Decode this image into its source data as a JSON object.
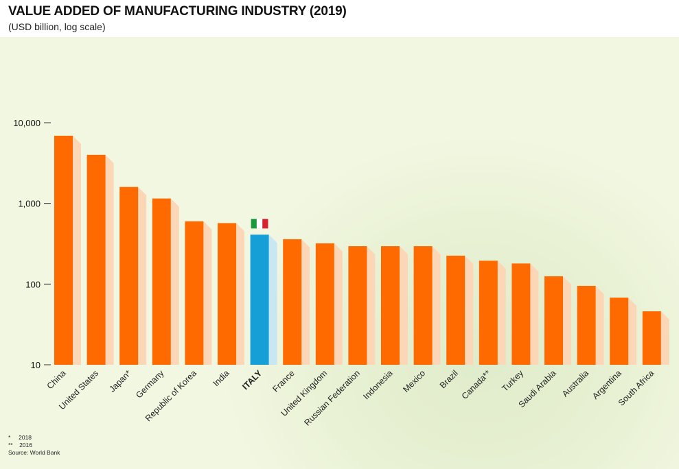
{
  "header": {
    "title": "VALUE ADDED OF MANUFACTURING INDUSTRY (2019)",
    "subtitle": "(USD billion, log scale)"
  },
  "colors": {
    "bar": "#ff6a00",
    "bar_shadow": "#fcd7b7",
    "highlight": "#169fd6",
    "highlight_shadow": "#c9e6f3",
    "flag_green": "#1a9a3d",
    "flag_white": "#ffffff",
    "flag_red": "#d7232f"
  },
  "footnotes": {
    "note1_mark": "*",
    "note1_text": "2018",
    "note2_mark": "**",
    "note2_text": "2016",
    "source": "Source: World Bank"
  },
  "chart_data": {
    "type": "bar",
    "title": "VALUE ADDED OF MANUFACTURING INDUSTRY (2019)",
    "subtitle": "(USD billion, log scale)",
    "y_scale": "log",
    "ylim": [
      10,
      10000
    ],
    "y_ticks": [
      10,
      100,
      1000,
      10000
    ],
    "y_tick_labels": [
      "10",
      "100",
      "1,000",
      "10,000"
    ],
    "highlight_category": "ITALY",
    "categories": [
      "China",
      "United States",
      "Japan*",
      "Germany",
      "Republic of Korea",
      "India",
      "ITALY",
      "France",
      "United Kingdom",
      "Russian Federation",
      "Indonesia",
      "Mexico",
      "Brazil",
      "Canada**",
      "Turkey",
      "Saudi Arabia",
      "Australia",
      "Argentina",
      "South Africa"
    ],
    "values": [
      6900,
      4000,
      1600,
      1150,
      600,
      570,
      410,
      360,
      320,
      295,
      295,
      295,
      225,
      195,
      180,
      125,
      95,
      68,
      46
    ]
  }
}
